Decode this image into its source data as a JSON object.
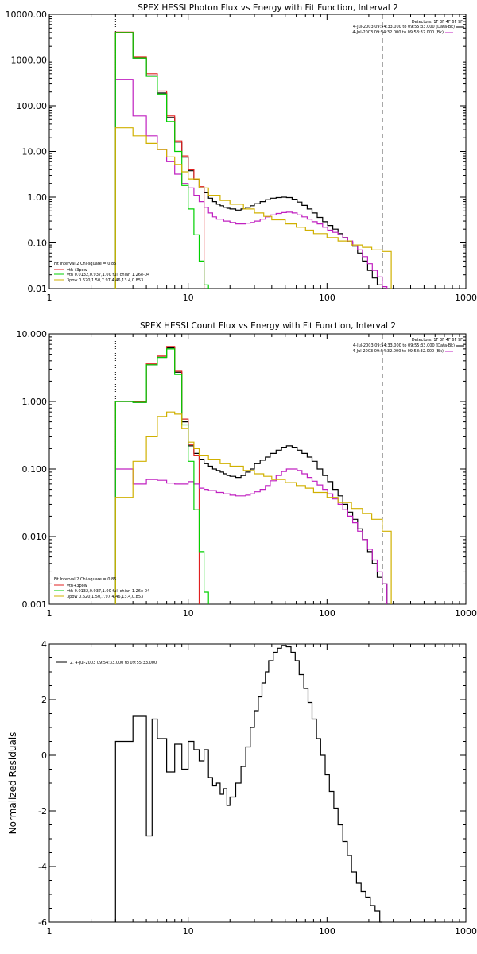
{
  "colors": {
    "data": "#000000",
    "background": "#c020c0",
    "model": "#e02020",
    "thermal": "#00d000",
    "power": "#d0b000"
  },
  "panels": [
    {
      "title": "SPEX HESSI Photon Flux vs Energy with Fit Function, Interval 2",
      "yticks": [
        {
          "v": 10000,
          "label": "10000.00"
        },
        {
          "v": 1000,
          "label": "1000.00"
        },
        {
          "v": 100,
          "label": "100.00"
        },
        {
          "v": 10,
          "label": "10.00"
        },
        {
          "v": 1,
          "label": "1.00"
        },
        {
          "v": 0.1,
          "label": "0.10"
        },
        {
          "v": 0.01,
          "label": "0.01"
        }
      ],
      "ylabel": "",
      "legend_right": [
        "Detectors: 1F 3F 4F 6F 9F",
        "4-Jul-2003 09:54:33.000 to 09:55:33.000 (Data-Bk)",
        "4-Jul-2003 09:54:32.000 to 09:58:32.000 (Bk)"
      ],
      "legend_left": [
        "Fit Interval 2   Chi-square = 0.85",
        "vth+3pow",
        "vth 0.0132,0.937,1.00  full chian 1.26e-04",
        "3pow 0.620,1.50,7.97,4.46,13.4,0.853"
      ]
    },
    {
      "title": "SPEX HESSI Count Flux vs Energy with Fit Function, Interval 2",
      "yticks": [
        {
          "v": 10,
          "label": "10.000"
        },
        {
          "v": 1,
          "label": "1.000"
        },
        {
          "v": 0.1,
          "label": "0.100"
        },
        {
          "v": 0.01,
          "label": "0.010"
        },
        {
          "v": 0.001,
          "label": "0.001"
        }
      ],
      "ylabel": "",
      "legend_right": [
        "Detectors: 1F 3F 4F 6F 9F",
        "4-Jul-2003 09:54:33.000 to 09:55:33.000 (Data-Bk)",
        "4-Jul-2003 09:54:32.000 to 09:58:32.000 (Bk)"
      ],
      "legend_left": [
        "Fit Interval 2   Chi-square = 0.85",
        "vth+3pow",
        "vth 0.0132,0.937,1.00  full chian 1.26e-04",
        "3pow 0.620,1.50,7.97,4.46,13.4,0.853"
      ]
    },
    {
      "title": "",
      "yticks": [
        {
          "v": 4,
          "label": "4"
        },
        {
          "v": 2,
          "label": "2"
        },
        {
          "v": 0,
          "label": "0"
        },
        {
          "v": -2,
          "label": "-2"
        },
        {
          "v": -4,
          "label": "-4"
        },
        {
          "v": -6,
          "label": "-6"
        }
      ],
      "ylabel": "Normalized Residuals",
      "legend_left": [
        "2.  4-Jul-2003 09:54:33.000 to 09:55:33.000"
      ]
    }
  ],
  "xticks": [
    {
      "v": 1,
      "label": "1"
    },
    {
      "v": 10,
      "label": "10"
    },
    {
      "v": 100,
      "label": "100"
    },
    {
      "v": 1000,
      "label": "1000"
    }
  ],
  "chart_data": [
    {
      "type": "line",
      "title": "SPEX HESSI Photon Flux vs Energy with Fit Function, Interval 2",
      "xscale": "log",
      "yscale": "log",
      "xlim": [
        1,
        1000
      ],
      "ylim": [
        0.01,
        10000
      ],
      "markers": {
        "fit_start_dotted": 3,
        "fit_end_dashed": 250
      },
      "series": [
        {
          "name": "",
          "color": "#000000",
          "edges": [
            3,
            4,
            5,
            6,
            7,
            8,
            9,
            10,
            11,
            12,
            13,
            14,
            15,
            16,
            17,
            18,
            19,
            20,
            22,
            24,
            26,
            28,
            30,
            33,
            36,
            39,
            43,
            47,
            51,
            56,
            61,
            66,
            72,
            78,
            85,
            93,
            101,
            110,
            120,
            130,
            141,
            153,
            166,
            180,
            196,
            212,
            230,
            250,
            270
          ],
          "values": [
            4000,
            1100,
            450,
            190,
            55,
            16,
            7.5,
            3.8,
            2.4,
            1.6,
            1.25,
            0.95,
            0.8,
            0.7,
            0.65,
            0.6,
            0.57,
            0.55,
            0.52,
            0.55,
            0.6,
            0.65,
            0.72,
            0.8,
            0.88,
            0.95,
            0.98,
            1.0,
            0.98,
            0.9,
            0.78,
            0.66,
            0.55,
            0.45,
            0.36,
            0.29,
            0.24,
            0.2,
            0.16,
            0.13,
            0.105,
            0.085,
            0.06,
            0.04,
            0.025,
            0.017,
            0.012,
            0.01
          ]
        },
        {
          "name": "vth+3pow",
          "color": "#e02020",
          "edges": [
            3,
            4,
            5,
            6,
            7,
            8,
            9,
            10,
            11,
            12,
            13
          ],
          "values": [
            4100,
            1150,
            500,
            210,
            60,
            17,
            8,
            4,
            2.5,
            1.7
          ]
        },
        {
          "name": "",
          "color": "#c020c0",
          "edges": [
            3,
            4,
            5,
            6,
            7,
            8,
            9,
            10,
            11,
            12,
            13,
            14,
            15,
            16,
            18,
            20,
            22,
            24,
            26,
            28,
            30,
            33,
            36,
            39,
            43,
            47,
            51,
            56,
            61,
            66,
            72,
            78,
            85,
            93,
            101,
            110,
            120,
            130,
            141,
            153,
            166,
            180,
            196,
            212,
            230,
            250,
            270
          ],
          "values": [
            380,
            60,
            22,
            11,
            6,
            3.2,
            2.0,
            1.6,
            1.1,
            0.8,
            0.6,
            0.45,
            0.37,
            0.33,
            0.3,
            0.28,
            0.26,
            0.26,
            0.27,
            0.28,
            0.3,
            0.33,
            0.37,
            0.41,
            0.44,
            0.46,
            0.47,
            0.45,
            0.41,
            0.37,
            0.33,
            0.29,
            0.26,
            0.22,
            0.19,
            0.17,
            0.15,
            0.13,
            0.11,
            0.09,
            0.07,
            0.05,
            0.035,
            0.025,
            0.018,
            0.011
          ]
        },
        {
          "name": "vth 0.0132,0.937,1.00  full chian 1.26e-04",
          "color": "#00d000",
          "edges": [
            3,
            4,
            5,
            6,
            7,
            8,
            9,
            10,
            11,
            12,
            13,
            14
          ],
          "values": [
            4000,
            1100,
            440,
            180,
            45,
            10,
            1.8,
            0.55,
            0.15,
            0.04,
            0.012
          ]
        },
        {
          "name": "3pow 0.620,1.50,7.97,4.46,13.4,0.853",
          "color": "#d0b000",
          "edges": [
            3,
            4,
            5,
            6,
            7,
            8,
            9,
            10,
            12,
            14,
            17,
            20,
            25,
            30,
            35,
            40,
            50,
            60,
            70,
            80,
            100,
            120,
            150,
            180,
            210,
            250,
            290
          ],
          "values": [
            33,
            22,
            15,
            11,
            7.6,
            5.2,
            3.6,
            2.5,
            1.6,
            1.1,
            0.85,
            0.7,
            0.55,
            0.45,
            0.38,
            0.32,
            0.26,
            0.22,
            0.19,
            0.16,
            0.13,
            0.11,
            0.09,
            0.08,
            0.07,
            0.065
          ]
        }
      ]
    },
    {
      "type": "line",
      "title": "SPEX HESSI Count Flux vs Energy with Fit Function, Interval 2",
      "xscale": "log",
      "yscale": "log",
      "xlim": [
        1,
        1000
      ],
      "ylim": [
        0.001,
        10
      ],
      "markers": {
        "fit_start_dotted": 3,
        "fit_end_dashed": 250
      },
      "series": [
        {
          "name": "",
          "color": "#000000",
          "edges": [
            3,
            4,
            5,
            6,
            7,
            8,
            9,
            10,
            11,
            12,
            13,
            14,
            15,
            16,
            17,
            18,
            19,
            20,
            22,
            24,
            26,
            28,
            30,
            33,
            36,
            39,
            43,
            47,
            51,
            56,
            61,
            66,
            72,
            78,
            85,
            93,
            101,
            110,
            120,
            130,
            141,
            153,
            166,
            180,
            196,
            212,
            230,
            250,
            270
          ],
          "values": [
            1.0,
            0.97,
            3.5,
            4.5,
            6.2,
            2.7,
            0.5,
            0.22,
            0.17,
            0.14,
            0.12,
            0.11,
            0.1,
            0.095,
            0.09,
            0.085,
            0.08,
            0.078,
            0.075,
            0.08,
            0.09,
            0.1,
            0.12,
            0.135,
            0.15,
            0.17,
            0.19,
            0.21,
            0.22,
            0.21,
            0.19,
            0.17,
            0.15,
            0.13,
            0.1,
            0.08,
            0.065,
            0.05,
            0.04,
            0.03,
            0.023,
            0.018,
            0.013,
            0.009,
            0.006,
            0.004,
            0.0025,
            0.002
          ]
        },
        {
          "name": "vth+3pow",
          "color": "#e02020",
          "edges": [
            3,
            4,
            5,
            6,
            7,
            8,
            9,
            10,
            11,
            12
          ],
          "values": [
            1.0,
            1.0,
            3.6,
            4.7,
            6.5,
            2.8,
            0.55,
            0.23,
            0.16
          ]
        },
        {
          "name": "",
          "color": "#c020c0",
          "edges": [
            3,
            4,
            5,
            6,
            7,
            8,
            9,
            10,
            11,
            12,
            13,
            14,
            16,
            18,
            20,
            22,
            24,
            26,
            28,
            30,
            33,
            36,
            39,
            43,
            47,
            51,
            56,
            61,
            66,
            72,
            78,
            85,
            93,
            101,
            110,
            120,
            130,
            141,
            153,
            166,
            180,
            196,
            212,
            230,
            250,
            270
          ],
          "values": [
            0.1,
            0.06,
            0.07,
            0.068,
            0.062,
            0.06,
            0.06,
            0.065,
            0.06,
            0.052,
            0.05,
            0.048,
            0.045,
            0.043,
            0.041,
            0.04,
            0.04,
            0.041,
            0.043,
            0.046,
            0.05,
            0.057,
            0.067,
            0.08,
            0.092,
            0.1,
            0.1,
            0.095,
            0.085,
            0.075,
            0.066,
            0.058,
            0.05,
            0.043,
            0.036,
            0.03,
            0.025,
            0.02,
            0.016,
            0.012,
            0.009,
            0.0065,
            0.0045,
            0.003,
            0.002
          ]
        },
        {
          "name": "vth 0.0132,0.937,1.00  full chian 1.26e-04",
          "color": "#00d000",
          "edges": [
            3,
            4,
            5,
            6,
            7,
            8,
            9,
            10,
            11,
            12,
            13,
            14
          ],
          "values": [
            1.0,
            0.97,
            3.5,
            4.5,
            6.0,
            2.5,
            0.45,
            0.13,
            0.025,
            0.006,
            0.0015
          ]
        },
        {
          "name": "3pow 0.620,1.50,7.97,4.46,13.4,0.853",
          "color": "#d0b000",
          "edges": [
            3,
            4,
            5,
            6,
            7,
            8,
            9,
            10,
            11,
            12,
            14,
            17,
            20,
            25,
            30,
            35,
            40,
            50,
            60,
            70,
            80,
            100,
            120,
            150,
            180,
            210,
            250,
            290
          ],
          "values": [
            0.038,
            0.13,
            0.3,
            0.6,
            0.7,
            0.65,
            0.4,
            0.25,
            0.2,
            0.16,
            0.14,
            0.12,
            0.11,
            0.095,
            0.085,
            0.078,
            0.07,
            0.063,
            0.057,
            0.052,
            0.045,
            0.038,
            0.032,
            0.026,
            0.022,
            0.018,
            0.012
          ]
        }
      ]
    },
    {
      "type": "line",
      "title": "",
      "xscale": "log",
      "yscale": "linear",
      "xlim": [
        1,
        1000
      ],
      "ylim": [
        -6,
        4
      ],
      "ylabel": "Normalized Residuals",
      "series": [
        {
          "name": "2.  4-Jul-2003 09:54:33.000 to 09:55:33.000",
          "color": "#000000",
          "edges": [
            3,
            4,
            5,
            5.5,
            6,
            7,
            8,
            9,
            10,
            11,
            12,
            13,
            14,
            15,
            16,
            17,
            18,
            19,
            20,
            22,
            24,
            26,
            28,
            30,
            32,
            34,
            36,
            38,
            41,
            44,
            47,
            51,
            55,
            59,
            63,
            68,
            73,
            78,
            84,
            90,
            97,
            104,
            112,
            120,
            130,
            140,
            150,
            163,
            176,
            190,
            205,
            222,
            240,
            250
          ],
          "values": [
            0.5,
            1.4,
            -2.9,
            1.3,
            0.6,
            -0.6,
            0.4,
            -0.5,
            0.5,
            0.2,
            -0.2,
            0.2,
            -0.8,
            -1.1,
            -1.0,
            -1.4,
            -1.2,
            -1.8,
            -1.5,
            -1.0,
            -0.4,
            0.3,
            1.0,
            1.6,
            2.1,
            2.6,
            3.0,
            3.4,
            3.7,
            3.85,
            3.95,
            3.9,
            3.7,
            3.4,
            2.9,
            2.4,
            1.9,
            1.3,
            0.6,
            0.0,
            -0.7,
            -1.3,
            -1.9,
            -2.5,
            -3.1,
            -3.6,
            -4.2,
            -4.6,
            -4.9,
            -5.1,
            -5.4,
            -5.6,
            -6.0
          ]
        }
      ]
    }
  ]
}
